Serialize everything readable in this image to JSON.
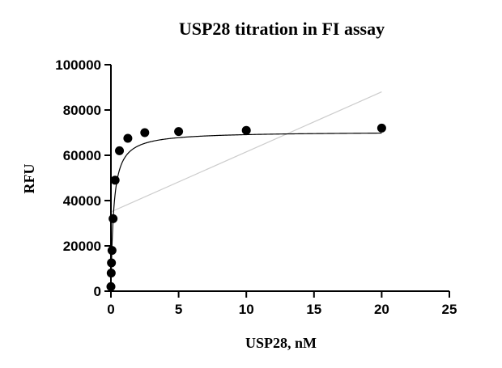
{
  "chart_data": {
    "type": "scatter",
    "title": "USP28 titration in FI assay",
    "xlabel": "USP28, nM",
    "ylabel": "RFU",
    "xlim": [
      0,
      25
    ],
    "ylim": [
      0,
      100000
    ],
    "xticks": [
      "0",
      "5",
      "10",
      "15",
      "20",
      "25"
    ],
    "yticks": [
      "0",
      "20000",
      "40000",
      "60000",
      "80000",
      "100000"
    ],
    "grid": false,
    "legend": "none",
    "series": [
      {
        "points": [
          {
            "x": 0,
            "y": 2000
          },
          {
            "x": 0.02,
            "y": 8000
          },
          {
            "x": 0.04,
            "y": 12500
          },
          {
            "x": 0.08,
            "y": 18000
          },
          {
            "x": 0.16,
            "y": 32000
          },
          {
            "x": 0.31,
            "y": 49000
          },
          {
            "x": 0.63,
            "y": 62000
          },
          {
            "x": 1.25,
            "y": 67500
          },
          {
            "x": 2.5,
            "y": 70000
          },
          {
            "x": 5,
            "y": 70500
          },
          {
            "x": 10,
            "y": 71000
          },
          {
            "x": 20,
            "y": 72000
          }
        ],
        "color": "#000000"
      }
    ],
    "fit_curve": {
      "type": "hyperbolic",
      "ymax": 70500,
      "k": 0.2,
      "color": "#000000"
    },
    "linear_fit": {
      "x": [
        0,
        20
      ],
      "y": [
        35000,
        88000
      ],
      "color": "#cccccc"
    }
  }
}
